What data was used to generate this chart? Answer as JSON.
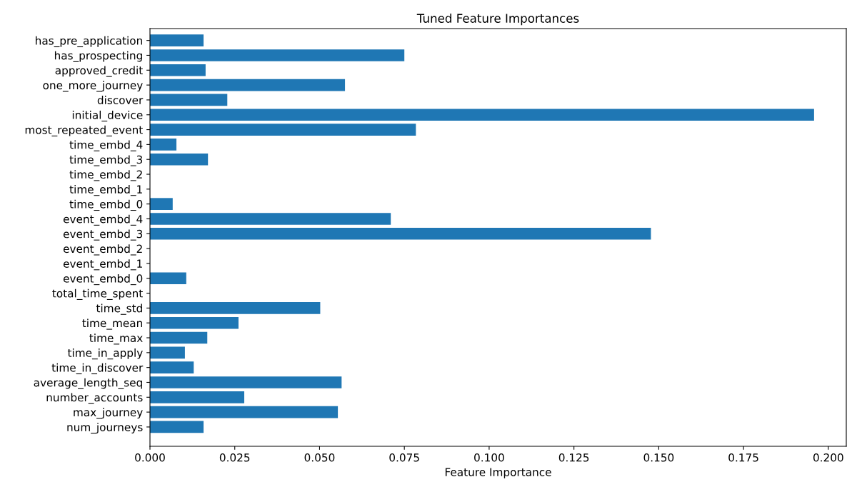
{
  "chart_data": {
    "type": "bar",
    "orientation": "horizontal",
    "title": "Tuned Feature Importances",
    "xlabel": "Feature Importance",
    "categories": [
      "has_pre_application",
      "has_prospecting",
      "approved_credit",
      "one_more_journey",
      "discover",
      "initial_device",
      "most_repeated_event",
      "time_embd_4",
      "time_embd_3",
      "time_embd_2",
      "time_embd_1",
      "time_embd_0",
      "event_embd_4",
      "event_embd_3",
      "event_embd_2",
      "event_embd_1",
      "event_embd_0",
      "total_time_spent",
      "time_std",
      "time_mean",
      "time_max",
      "time_in_apply",
      "time_in_discover",
      "average_length_seq",
      "number_accounts",
      "max_journey",
      "num_journeys"
    ],
    "values": [
      0.0158,
      0.075,
      0.0164,
      0.0575,
      0.0228,
      0.1958,
      0.0784,
      0.0078,
      0.0171,
      0,
      0,
      0.0067,
      0.071,
      0.1477,
      0,
      0,
      0.0107,
      0,
      0.0502,
      0.0261,
      0.0169,
      0.0103,
      0.0129,
      0.0565,
      0.0278,
      0.0554,
      0.0158
    ],
    "color": "#1f77b4",
    "xlim": [
      0,
      0.2053
    ],
    "xticks": [
      {
        "value": 0,
        "label": "0.000"
      },
      {
        "value": 0.025,
        "label": "0.025"
      },
      {
        "value": 0.05,
        "label": "0.050"
      },
      {
        "value": 0.075,
        "label": "0.075"
      },
      {
        "value": 0.1,
        "label": "0.100"
      },
      {
        "value": 0.125,
        "label": "0.125"
      },
      {
        "value": 0.15,
        "label": "0.150"
      },
      {
        "value": 0.175,
        "label": "0.175"
      },
      {
        "value": 0.2,
        "label": "0.200"
      }
    ],
    "grid": false
  }
}
